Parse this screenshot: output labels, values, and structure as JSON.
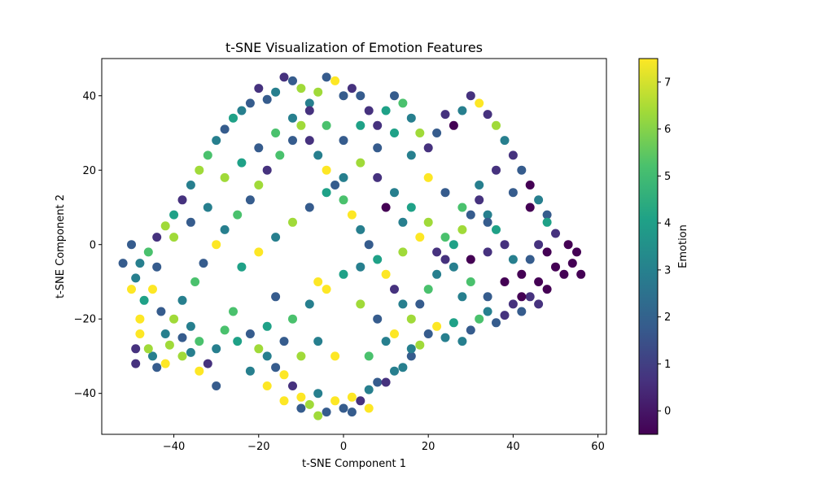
{
  "chart_data": {
    "type": "scatter",
    "title": "t-SNE Visualization of Emotion Features",
    "xlabel": "t-SNE Component 1",
    "ylabel": "t-SNE Component 2",
    "xlim": [
      -57,
      62
    ],
    "ylim": [
      -51,
      50
    ],
    "xticks": [
      -40,
      -20,
      0,
      20,
      40,
      60
    ],
    "yticks": [
      -40,
      -20,
      0,
      20,
      40
    ],
    "xtick_labels": [
      "−40",
      "−20",
      "0",
      "20",
      "40",
      "60"
    ],
    "ytick_labels": [
      "−40",
      "−20",
      "0",
      "20",
      "40"
    ],
    "grid": false,
    "colorbar": {
      "label": "Emotion",
      "colormap": "viridis",
      "range": [
        -0.5,
        7.5
      ],
      "ticks": [
        0,
        1,
        2,
        3,
        4,
        5,
        6,
        7
      ],
      "tick_labels": [
        "0",
        "1",
        "2",
        "3",
        "4",
        "5",
        "6",
        "7"
      ]
    },
    "points": [
      [
        -50,
        0,
        2
      ],
      [
        -52,
        -5,
        2
      ],
      [
        -49,
        -9,
        3
      ],
      [
        -47,
        -15,
        4
      ],
      [
        -48,
        -20,
        7
      ],
      [
        -49,
        -28,
        1
      ],
      [
        -49,
        -32,
        1
      ],
      [
        -45,
        -30,
        3
      ],
      [
        -44,
        -33,
        2
      ],
      [
        -42,
        -32,
        7
      ],
      [
        -41,
        -27,
        6
      ],
      [
        -38,
        -25,
        2
      ],
      [
        -36,
        -29,
        3
      ],
      [
        -34,
        -26,
        5
      ],
      [
        -32,
        -32,
        1
      ],
      [
        -30,
        -28,
        3
      ],
      [
        -28,
        -23,
        5
      ],
      [
        -25,
        -26,
        4
      ],
      [
        -22,
        -24,
        2
      ],
      [
        -20,
        -28,
        6
      ],
      [
        -18,
        -30,
        3
      ],
      [
        -16,
        -33,
        2
      ],
      [
        -14,
        -35,
        7
      ],
      [
        -12,
        -38,
        1
      ],
      [
        -10,
        -41,
        7
      ],
      [
        -8,
        -43,
        6
      ],
      [
        -6,
        -40,
        3
      ],
      [
        -4,
        -45,
        2
      ],
      [
        -2,
        -42,
        7
      ],
      [
        0,
        -44,
        2
      ],
      [
        2,
        -41,
        7
      ],
      [
        4,
        -42,
        1
      ],
      [
        6,
        -39,
        3
      ],
      [
        8,
        -37,
        2
      ],
      [
        10,
        -37,
        1
      ],
      [
        12,
        -34,
        3
      ],
      [
        14,
        -33,
        3
      ],
      [
        16,
        -30,
        2
      ],
      [
        18,
        -27,
        6
      ],
      [
        20,
        -24,
        2
      ],
      [
        22,
        -22,
        7
      ],
      [
        24,
        -25,
        3
      ],
      [
        26,
        -21,
        4
      ],
      [
        28,
        -26,
        3
      ],
      [
        30,
        -23,
        2
      ],
      [
        32,
        -20,
        5
      ],
      [
        34,
        -18,
        3
      ],
      [
        36,
        -21,
        2
      ],
      [
        38,
        -19,
        1
      ],
      [
        40,
        -16,
        1
      ],
      [
        42,
        -18,
        2
      ],
      [
        44,
        -14,
        1
      ],
      [
        46,
        -10,
        0
      ],
      [
        48,
        -12,
        0
      ],
      [
        50,
        -6,
        0
      ],
      [
        52,
        -8,
        0
      ],
      [
        54,
        -5,
        0
      ],
      [
        56,
        -8,
        0
      ],
      [
        55,
        -2,
        0
      ],
      [
        53,
        0,
        0
      ],
      [
        50,
        3,
        1
      ],
      [
        48,
        8,
        2
      ],
      [
        46,
        12,
        3
      ],
      [
        44,
        16,
        0
      ],
      [
        42,
        20,
        2
      ],
      [
        40,
        24,
        1
      ],
      [
        38,
        28,
        3
      ],
      [
        36,
        32,
        6
      ],
      [
        34,
        35,
        1
      ],
      [
        32,
        38,
        7
      ],
      [
        30,
        40,
        1
      ],
      [
        28,
        36,
        3
      ],
      [
        26,
        32,
        0
      ],
      [
        24,
        35,
        1
      ],
      [
        22,
        30,
        2
      ],
      [
        20,
        26,
        1
      ],
      [
        18,
        30,
        6
      ],
      [
        16,
        34,
        3
      ],
      [
        14,
        38,
        5
      ],
      [
        12,
        40,
        2
      ],
      [
        10,
        36,
        4
      ],
      [
        8,
        32,
        1
      ],
      [
        6,
        36,
        1
      ],
      [
        4,
        40,
        2
      ],
      [
        2,
        42,
        1
      ],
      [
        0,
        40,
        2
      ],
      [
        -2,
        44,
        7
      ],
      [
        -4,
        45,
        2
      ],
      [
        -6,
        41,
        6
      ],
      [
        -8,
        38,
        3
      ],
      [
        -10,
        42,
        6
      ],
      [
        -12,
        44,
        2
      ],
      [
        -14,
        45,
        1
      ],
      [
        -16,
        41,
        3
      ],
      [
        -18,
        39,
        2
      ],
      [
        -20,
        42,
        1
      ],
      [
        -22,
        38,
        2
      ],
      [
        -24,
        36,
        3
      ],
      [
        -26,
        34,
        4
      ],
      [
        -28,
        31,
        2
      ],
      [
        -30,
        28,
        3
      ],
      [
        -32,
        24,
        5
      ],
      [
        -34,
        20,
        6
      ],
      [
        -36,
        16,
        3
      ],
      [
        -38,
        12,
        1
      ],
      [
        -40,
        8,
        4
      ],
      [
        -42,
        5,
        6
      ],
      [
        -44,
        2,
        1
      ],
      [
        -46,
        -2,
        5
      ],
      [
        -48,
        -5,
        3
      ],
      [
        -45,
        -12,
        7
      ],
      [
        -43,
        -18,
        2
      ],
      [
        -40,
        -20,
        6
      ],
      [
        -38,
        -15,
        3
      ],
      [
        -35,
        -10,
        5
      ],
      [
        -33,
        -5,
        2
      ],
      [
        -30,
        0,
        7
      ],
      [
        -28,
        4,
        3
      ],
      [
        -25,
        8,
        5
      ],
      [
        -22,
        12,
        2
      ],
      [
        -20,
        16,
        6
      ],
      [
        -18,
        20,
        1
      ],
      [
        -15,
        24,
        5
      ],
      [
        -12,
        28,
        2
      ],
      [
        -10,
        32,
        6
      ],
      [
        -8,
        28,
        1
      ],
      [
        -6,
        24,
        3
      ],
      [
        -4,
        20,
        7
      ],
      [
        -2,
        16,
        2
      ],
      [
        0,
        12,
        5
      ],
      [
        2,
        8,
        7
      ],
      [
        4,
        4,
        3
      ],
      [
        6,
        0,
        2
      ],
      [
        8,
        -4,
        4
      ],
      [
        10,
        -8,
        7
      ],
      [
        12,
        -12,
        1
      ],
      [
        14,
        -16,
        3
      ],
      [
        16,
        -20,
        6
      ],
      [
        18,
        -16,
        2
      ],
      [
        20,
        -12,
        5
      ],
      [
        22,
        -8,
        3
      ],
      [
        24,
        -4,
        1
      ],
      [
        26,
        0,
        4
      ],
      [
        28,
        4,
        6
      ],
      [
        30,
        8,
        2
      ],
      [
        32,
        12,
        1
      ],
      [
        34,
        8,
        3
      ],
      [
        36,
        4,
        4
      ],
      [
        38,
        0,
        1
      ],
      [
        40,
        -4,
        3
      ],
      [
        42,
        -8,
        0
      ],
      [
        44,
        -4,
        2
      ],
      [
        46,
        0,
        1
      ],
      [
        48,
        -2,
        0
      ],
      [
        -36,
        -22,
        3
      ],
      [
        -26,
        -18,
        5
      ],
      [
        -16,
        -14,
        2
      ],
      [
        -6,
        -10,
        7
      ],
      [
        4,
        -6,
        3
      ],
      [
        14,
        -2,
        6
      ],
      [
        24,
        2,
        5
      ],
      [
        34,
        6,
        2
      ],
      [
        -48,
        -24,
        7
      ],
      [
        -46,
        -28,
        6
      ],
      [
        -42,
        -24,
        3
      ],
      [
        -38,
        -30,
        6
      ],
      [
        -34,
        -34,
        7
      ],
      [
        -30,
        -38,
        2
      ],
      [
        -22,
        -34,
        3
      ],
      [
        -18,
        -38,
        7
      ],
      [
        -14,
        -42,
        7
      ],
      [
        -10,
        -44,
        2
      ],
      [
        -6,
        -46,
        6
      ],
      [
        2,
        -45,
        2
      ],
      [
        6,
        -44,
        7
      ],
      [
        -12,
        -20,
        5
      ],
      [
        -8,
        -16,
        3
      ],
      [
        -4,
        -12,
        7
      ],
      [
        0,
        -8,
        4
      ],
      [
        4,
        -16,
        6
      ],
      [
        8,
        -20,
        2
      ],
      [
        12,
        -24,
        7
      ],
      [
        16,
        -28,
        3
      ],
      [
        -24,
        -6,
        4
      ],
      [
        -20,
        -2,
        7
      ],
      [
        -16,
        2,
        3
      ],
      [
        -12,
        6,
        6
      ],
      [
        -8,
        10,
        2
      ],
      [
        -4,
        14,
        4
      ],
      [
        0,
        18,
        3
      ],
      [
        4,
        22,
        6
      ],
      [
        8,
        26,
        2
      ],
      [
        12,
        30,
        4
      ],
      [
        16,
        24,
        3
      ],
      [
        20,
        18,
        7
      ],
      [
        24,
        14,
        2
      ],
      [
        28,
        10,
        5
      ],
      [
        32,
        16,
        3
      ],
      [
        36,
        20,
        1
      ],
      [
        40,
        14,
        2
      ],
      [
        44,
        10,
        0
      ],
      [
        48,
        6,
        4
      ],
      [
        -28,
        18,
        6
      ],
      [
        -24,
        22,
        4
      ],
      [
        -20,
        26,
        2
      ],
      [
        -16,
        30,
        5
      ],
      [
        -12,
        34,
        3
      ],
      [
        -8,
        36,
        1
      ],
      [
        -4,
        32,
        5
      ],
      [
        0,
        28,
        2
      ],
      [
        4,
        32,
        4
      ],
      [
        8,
        18,
        1
      ],
      [
        12,
        14,
        3
      ],
      [
        16,
        10,
        4
      ],
      [
        20,
        6,
        6
      ],
      [
        -32,
        10,
        3
      ],
      [
        -36,
        6,
        2
      ],
      [
        -40,
        2,
        6
      ],
      [
        -44,
        -6,
        2
      ],
      [
        -50,
        -12,
        7
      ],
      [
        10,
        10,
        0
      ],
      [
        14,
        6,
        3
      ],
      [
        18,
        2,
        7
      ],
      [
        22,
        -2,
        1
      ],
      [
        26,
        -6,
        3
      ],
      [
        30,
        -10,
        5
      ],
      [
        34,
        -14,
        2
      ],
      [
        38,
        -10,
        0
      ],
      [
        42,
        -14,
        0
      ],
      [
        46,
        -16,
        1
      ],
      [
        30,
        -4,
        0
      ],
      [
        34,
        -2,
        1
      ],
      [
        28,
        -14,
        3
      ],
      [
        -2,
        -30,
        7
      ],
      [
        -6,
        -26,
        3
      ],
      [
        -10,
        -30,
        6
      ],
      [
        6,
        -30,
        5
      ],
      [
        10,
        -26,
        3
      ],
      [
        -14,
        -26,
        2
      ],
      [
        -18,
        -22,
        4
      ]
    ]
  }
}
